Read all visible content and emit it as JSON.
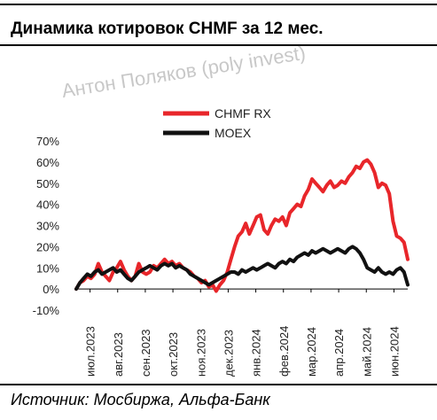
{
  "header": {
    "title": "Динамика котировок CHMF за 12 мес."
  },
  "watermark": "Антон Поляков (poly invest)",
  "footer": {
    "source": "Источник: Мосбиржа, Альфа-Банк"
  },
  "chart_data": {
    "type": "line",
    "ylim": [
      -10,
      70
    ],
    "yticks": [
      "-10%",
      "0%",
      "10%",
      "20%",
      "30%",
      "40%",
      "50%",
      "60%",
      "70%"
    ],
    "xticks": [
      "июл.2023",
      "авг.2023",
      "сен.2023",
      "окт.2023",
      "ноя.2023",
      "дек.2023",
      "янв.2024",
      "фев.2024",
      "мар.2024",
      "апр.2024",
      "май.2024",
      "июн.2024"
    ],
    "legend_position": "top",
    "grid": false,
    "series": [
      {
        "name": "CHMF RX",
        "color": "#e8262a",
        "values": [
          0,
          3,
          4,
          6,
          5,
          7,
          12,
          8,
          6,
          4,
          8,
          10,
          13,
          9,
          6,
          4,
          6,
          12,
          8,
          7,
          8,
          11,
          10,
          12,
          14,
          12,
          13,
          11,
          12,
          10,
          9,
          8,
          6,
          5,
          3,
          4,
          1,
          2,
          -1,
          2,
          4,
          8,
          14,
          20,
          25,
          27,
          31,
          26,
          30,
          34,
          35,
          28,
          26,
          30,
          33,
          32,
          34,
          30,
          36,
          38,
          40,
          39,
          44,
          47,
          52,
          50,
          48,
          46,
          49,
          51,
          48,
          49,
          51,
          50,
          53,
          55,
          58,
          57,
          60,
          61,
          59,
          55,
          48,
          50,
          49,
          45,
          32,
          25,
          24,
          22,
          14
        ]
      },
      {
        "name": "MOEX",
        "color": "#111111",
        "values": [
          0,
          3,
          5,
          7,
          6,
          8,
          9,
          7,
          8,
          9,
          10,
          8,
          9,
          7,
          5,
          4,
          6,
          8,
          9,
          10,
          11,
          10,
          9,
          11,
          12,
          11,
          12,
          10,
          11,
          10,
          9,
          7,
          6,
          5,
          4,
          3,
          2,
          3,
          4,
          5,
          6,
          7,
          8,
          8,
          7,
          9,
          8,
          9,
          10,
          9,
          10,
          11,
          12,
          11,
          10,
          12,
          13,
          12,
          14,
          13,
          15,
          16,
          17,
          16,
          18,
          17,
          18,
          19,
          18,
          17,
          18,
          19,
          18,
          17,
          19,
          20,
          19,
          17,
          14,
          10,
          9,
          8,
          10,
          8,
          7,
          8,
          7,
          9,
          10,
          8,
          2
        ]
      }
    ]
  }
}
